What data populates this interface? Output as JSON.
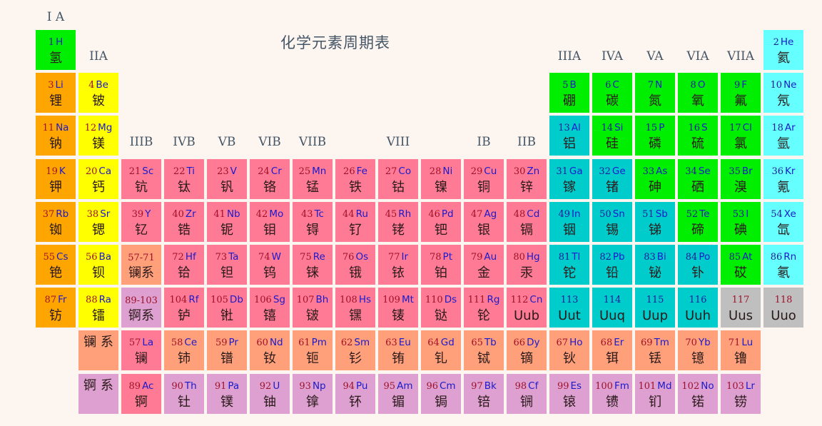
{
  "title": "化学元素周期表",
  "colors": {
    "alkali": "#ffa500",
    "alkaline": "#ffff00",
    "transition": "#ff7a94",
    "nonmetal": "#00ee00",
    "metal": "#00cccc",
    "noble": "#66ffff",
    "lanthanide": "#ffa07a",
    "actinide": "#dda0d0",
    "unknown": "#bfbfbf"
  },
  "group_labels": [
    {
      "text": "I A",
      "col": 1,
      "row": 0
    },
    {
      "text": "IIA",
      "col": 2,
      "row": 1
    },
    {
      "text": "IIIB",
      "col": 3,
      "row": 3
    },
    {
      "text": "IVB",
      "col": 4,
      "row": 3
    },
    {
      "text": "VB",
      "col": 5,
      "row": 3
    },
    {
      "text": "VIB",
      "col": 6,
      "row": 3
    },
    {
      "text": "VIIB",
      "col": 7,
      "row": 3
    },
    {
      "text": "VIII",
      "col": 9,
      "row": 3
    },
    {
      "text": "IB",
      "col": 11,
      "row": 3
    },
    {
      "text": "IIB",
      "col": 12,
      "row": 3
    },
    {
      "text": "IIIA",
      "col": 13,
      "row": 1
    },
    {
      "text": "IVA",
      "col": 14,
      "row": 1
    },
    {
      "text": "VA",
      "col": 15,
      "row": 1
    },
    {
      "text": "VIA",
      "col": 16,
      "row": 1
    },
    {
      "text": "VIIA",
      "col": 17,
      "row": 1
    }
  ],
  "elements": [
    {
      "n": 1,
      "s": "H",
      "name": "氢",
      "row": 1,
      "col": 1,
      "cat": "nonmetal"
    },
    {
      "n": 2,
      "s": "He",
      "name": "氦",
      "row": 1,
      "col": 18,
      "cat": "noble"
    },
    {
      "n": 3,
      "s": "Li",
      "name": "锂",
      "row": 2,
      "col": 1,
      "cat": "alkali"
    },
    {
      "n": 4,
      "s": "Be",
      "name": "铍",
      "row": 2,
      "col": 2,
      "cat": "alkaline"
    },
    {
      "n": 5,
      "s": "B",
      "name": "硼",
      "row": 2,
      "col": 13,
      "cat": "nonmetal"
    },
    {
      "n": 6,
      "s": "C",
      "name": "碳",
      "row": 2,
      "col": 14,
      "cat": "nonmetal"
    },
    {
      "n": 7,
      "s": "N",
      "name": "氮",
      "row": 2,
      "col": 15,
      "cat": "nonmetal"
    },
    {
      "n": 8,
      "s": "O",
      "name": "氧",
      "row": 2,
      "col": 16,
      "cat": "nonmetal"
    },
    {
      "n": 9,
      "s": "F",
      "name": "氟",
      "row": 2,
      "col": 17,
      "cat": "nonmetal"
    },
    {
      "n": 10,
      "s": "Ne",
      "name": "氖",
      "row": 2,
      "col": 18,
      "cat": "noble"
    },
    {
      "n": 11,
      "s": "Na",
      "name": "钠",
      "row": 3,
      "col": 1,
      "cat": "alkali"
    },
    {
      "n": 12,
      "s": "Mg",
      "name": "镁",
      "row": 3,
      "col": 2,
      "cat": "alkaline"
    },
    {
      "n": 13,
      "s": "Al",
      "name": "铝",
      "row": 3,
      "col": 13,
      "cat": "metal"
    },
    {
      "n": 14,
      "s": "Si",
      "name": "硅",
      "row": 3,
      "col": 14,
      "cat": "nonmetal"
    },
    {
      "n": 15,
      "s": "P",
      "name": "磷",
      "row": 3,
      "col": 15,
      "cat": "nonmetal"
    },
    {
      "n": 16,
      "s": "S",
      "name": "硫",
      "row": 3,
      "col": 16,
      "cat": "nonmetal"
    },
    {
      "n": 17,
      "s": "Cl",
      "name": "氯",
      "row": 3,
      "col": 17,
      "cat": "nonmetal"
    },
    {
      "n": 18,
      "s": "Ar",
      "name": "氩",
      "row": 3,
      "col": 18,
      "cat": "noble"
    },
    {
      "n": 19,
      "s": "K",
      "name": "钾",
      "row": 4,
      "col": 1,
      "cat": "alkali"
    },
    {
      "n": 20,
      "s": "Ca",
      "name": "钙",
      "row": 4,
      "col": 2,
      "cat": "alkaline"
    },
    {
      "n": 21,
      "s": "Sc",
      "name": "钪",
      "row": 4,
      "col": 3,
      "cat": "transition"
    },
    {
      "n": 22,
      "s": "Ti",
      "name": "钛",
      "row": 4,
      "col": 4,
      "cat": "transition"
    },
    {
      "n": 23,
      "s": "V",
      "name": "钒",
      "row": 4,
      "col": 5,
      "cat": "transition"
    },
    {
      "n": 24,
      "s": "Cr",
      "name": "铬",
      "row": 4,
      "col": 6,
      "cat": "transition"
    },
    {
      "n": 25,
      "s": "Mn",
      "name": "锰",
      "row": 4,
      "col": 7,
      "cat": "transition"
    },
    {
      "n": 26,
      "s": "Fe",
      "name": "铁",
      "row": 4,
      "col": 8,
      "cat": "transition"
    },
    {
      "n": 27,
      "s": "Co",
      "name": "钴",
      "row": 4,
      "col": 9,
      "cat": "transition"
    },
    {
      "n": 28,
      "s": "Ni",
      "name": "镍",
      "row": 4,
      "col": 10,
      "cat": "transition"
    },
    {
      "n": 29,
      "s": "Cu",
      "name": "铜",
      "row": 4,
      "col": 11,
      "cat": "transition"
    },
    {
      "n": 30,
      "s": "Zn",
      "name": "锌",
      "row": 4,
      "col": 12,
      "cat": "transition"
    },
    {
      "n": 31,
      "s": "Ga",
      "name": "镓",
      "row": 4,
      "col": 13,
      "cat": "metal"
    },
    {
      "n": 32,
      "s": "Ge",
      "name": "锗",
      "row": 4,
      "col": 14,
      "cat": "metal"
    },
    {
      "n": 33,
      "s": "As",
      "name": "砷",
      "row": 4,
      "col": 15,
      "cat": "nonmetal"
    },
    {
      "n": 34,
      "s": "Se",
      "name": "硒",
      "row": 4,
      "col": 16,
      "cat": "nonmetal"
    },
    {
      "n": 35,
      "s": "Br",
      "name": "溴",
      "row": 4,
      "col": 17,
      "cat": "nonmetal"
    },
    {
      "n": 36,
      "s": "Kr",
      "name": "氪",
      "row": 4,
      "col": 18,
      "cat": "noble"
    },
    {
      "n": 37,
      "s": "Rb",
      "name": "铷",
      "row": 5,
      "col": 1,
      "cat": "alkali"
    },
    {
      "n": 38,
      "s": "Sr",
      "name": "锶",
      "row": 5,
      "col": 2,
      "cat": "alkaline"
    },
    {
      "n": 39,
      "s": "Y",
      "name": "钇",
      "row": 5,
      "col": 3,
      "cat": "transition"
    },
    {
      "n": 40,
      "s": "Zr",
      "name": "锆",
      "row": 5,
      "col": 4,
      "cat": "transition"
    },
    {
      "n": 41,
      "s": "Nb",
      "name": "铌",
      "row": 5,
      "col": 5,
      "cat": "transition"
    },
    {
      "n": 42,
      "s": "Mo",
      "name": "钼",
      "row": 5,
      "col": 6,
      "cat": "transition"
    },
    {
      "n": 43,
      "s": "Tc",
      "name": "锝",
      "row": 5,
      "col": 7,
      "cat": "transition"
    },
    {
      "n": 44,
      "s": "Ru",
      "name": "钌",
      "row": 5,
      "col": 8,
      "cat": "transition"
    },
    {
      "n": 45,
      "s": "Rh",
      "name": "铑",
      "row": 5,
      "col": 9,
      "cat": "transition"
    },
    {
      "n": 46,
      "s": "Pd",
      "name": "钯",
      "row": 5,
      "col": 10,
      "cat": "transition"
    },
    {
      "n": 47,
      "s": "Ag",
      "name": "银",
      "row": 5,
      "col": 11,
      "cat": "transition"
    },
    {
      "n": 48,
      "s": "Cd",
      "name": "镉",
      "row": 5,
      "col": 12,
      "cat": "transition"
    },
    {
      "n": 49,
      "s": "In",
      "name": "铟",
      "row": 5,
      "col": 13,
      "cat": "metal"
    },
    {
      "n": 50,
      "s": "Sn",
      "name": "锡",
      "row": 5,
      "col": 14,
      "cat": "metal"
    },
    {
      "n": 51,
      "s": "Sb",
      "name": "锑",
      "row": 5,
      "col": 15,
      "cat": "metal"
    },
    {
      "n": 52,
      "s": "Te",
      "name": "碲",
      "row": 5,
      "col": 16,
      "cat": "nonmetal"
    },
    {
      "n": 53,
      "s": "I",
      "name": "碘",
      "row": 5,
      "col": 17,
      "cat": "nonmetal"
    },
    {
      "n": 54,
      "s": "Xe",
      "name": "氙",
      "row": 5,
      "col": 18,
      "cat": "noble"
    },
    {
      "n": 55,
      "s": "Cs",
      "name": "铯",
      "row": 6,
      "col": 1,
      "cat": "alkali"
    },
    {
      "n": 56,
      "s": "Ba",
      "name": "钡",
      "row": 6,
      "col": 2,
      "cat": "alkaline"
    },
    {
      "n": "57-71",
      "s": "",
      "name": "镧系",
      "row": 6,
      "col": 3,
      "cat": "lanthanide",
      "kind": "range"
    },
    {
      "n": 72,
      "s": "Hf",
      "name": "铪",
      "row": 6,
      "col": 4,
      "cat": "transition"
    },
    {
      "n": 73,
      "s": "Ta",
      "name": "钽",
      "row": 6,
      "col": 5,
      "cat": "transition"
    },
    {
      "n": 74,
      "s": "W",
      "name": "钨",
      "row": 6,
      "col": 6,
      "cat": "transition"
    },
    {
      "n": 75,
      "s": "Re",
      "name": "铼",
      "row": 6,
      "col": 7,
      "cat": "transition"
    },
    {
      "n": 76,
      "s": "Os",
      "name": "锇",
      "row": 6,
      "col": 8,
      "cat": "transition"
    },
    {
      "n": 77,
      "s": "Ir",
      "name": "铱",
      "row": 6,
      "col": 9,
      "cat": "transition"
    },
    {
      "n": 78,
      "s": "Pt",
      "name": "铂",
      "row": 6,
      "col": 10,
      "cat": "transition"
    },
    {
      "n": 79,
      "s": "Au",
      "name": "金",
      "row": 6,
      "col": 11,
      "cat": "transition"
    },
    {
      "n": 80,
      "s": "Hg",
      "name": "汞",
      "row": 6,
      "col": 12,
      "cat": "transition"
    },
    {
      "n": 81,
      "s": "Tl",
      "name": "铊",
      "row": 6,
      "col": 13,
      "cat": "metal"
    },
    {
      "n": 82,
      "s": "Pb",
      "name": "铅",
      "row": 6,
      "col": 14,
      "cat": "metal"
    },
    {
      "n": 83,
      "s": "Bi",
      "name": "铋",
      "row": 6,
      "col": 15,
      "cat": "metal"
    },
    {
      "n": 84,
      "s": "Po",
      "name": "钋",
      "row": 6,
      "col": 16,
      "cat": "metal"
    },
    {
      "n": 85,
      "s": "At",
      "name": "砹",
      "row": 6,
      "col": 17,
      "cat": "nonmetal"
    },
    {
      "n": 86,
      "s": "Rn",
      "name": "氡",
      "row": 6,
      "col": 18,
      "cat": "noble"
    },
    {
      "n": 87,
      "s": "Fr",
      "name": "钫",
      "row": 7,
      "col": 1,
      "cat": "alkali"
    },
    {
      "n": 88,
      "s": "Ra",
      "name": "镭",
      "row": 7,
      "col": 2,
      "cat": "alkaline"
    },
    {
      "n": "89-103",
      "s": "",
      "name": "锕系",
      "row": 7,
      "col": 3,
      "cat": "actinide",
      "kind": "range"
    },
    {
      "n": 104,
      "s": "Rf",
      "name": "𬬻",
      "row": 7,
      "col": 4,
      "cat": "transition"
    },
    {
      "n": 105,
      "s": "Db",
      "name": "𬭊",
      "row": 7,
      "col": 5,
      "cat": "transition"
    },
    {
      "n": 106,
      "s": "Sg",
      "name": "𬭳",
      "row": 7,
      "col": 6,
      "cat": "transition"
    },
    {
      "n": 107,
      "s": "Bh",
      "name": "𬭛",
      "row": 7,
      "col": 7,
      "cat": "transition"
    },
    {
      "n": 108,
      "s": "Hs",
      "name": "𬭶",
      "row": 7,
      "col": 8,
      "cat": "transition"
    },
    {
      "n": 109,
      "s": "Mt",
      "name": "鿏",
      "row": 7,
      "col": 9,
      "cat": "transition"
    },
    {
      "n": 110,
      "s": "Ds",
      "name": "𫟼",
      "row": 7,
      "col": 10,
      "cat": "transition"
    },
    {
      "n": 111,
      "s": "Rg",
      "name": "𬬭",
      "row": 7,
      "col": 11,
      "cat": "transition"
    },
    {
      "n": 112,
      "s": "Cn",
      "name": "Uub",
      "row": 7,
      "col": 12,
      "cat": "transition"
    },
    {
      "n": 113,
      "s": "",
      "name": "Uut",
      "row": 7,
      "col": 13,
      "cat": "metal"
    },
    {
      "n": 114,
      "s": "",
      "name": "Uuq",
      "row": 7,
      "col": 14,
      "cat": "metal"
    },
    {
      "n": 115,
      "s": "",
      "name": "Uup",
      "row": 7,
      "col": 15,
      "cat": "metal"
    },
    {
      "n": 116,
      "s": "",
      "name": "Uuh",
      "row": 7,
      "col": 16,
      "cat": "metal"
    },
    {
      "n": 117,
      "s": "",
      "name": "Uus",
      "row": 7,
      "col": 17,
      "cat": "unknown"
    },
    {
      "n": 118,
      "s": "",
      "name": "Uuo",
      "row": 7,
      "col": 18,
      "cat": "unknown"
    },
    {
      "n": "",
      "s": "",
      "name": "镧 系",
      "row": 8,
      "col": 2,
      "cat": "lanthanide",
      "kind": "series"
    },
    {
      "n": 57,
      "s": "La",
      "name": "镧",
      "row": 8,
      "col": 3,
      "cat": "transition"
    },
    {
      "n": 58,
      "s": "Ce",
      "name": "铈",
      "row": 8,
      "col": 4,
      "cat": "lanthanide"
    },
    {
      "n": 59,
      "s": "Pr",
      "name": "镨",
      "row": 8,
      "col": 5,
      "cat": "lanthanide"
    },
    {
      "n": 60,
      "s": "Nd",
      "name": "钕",
      "row": 8,
      "col": 6,
      "cat": "lanthanide"
    },
    {
      "n": 61,
      "s": "Pm",
      "name": "钷",
      "row": 8,
      "col": 7,
      "cat": "lanthanide"
    },
    {
      "n": 62,
      "s": "Sm",
      "name": "钐",
      "row": 8,
      "col": 8,
      "cat": "lanthanide"
    },
    {
      "n": 63,
      "s": "Eu",
      "name": "铕",
      "row": 8,
      "col": 9,
      "cat": "lanthanide"
    },
    {
      "n": 64,
      "s": "Gd",
      "name": "钆",
      "row": 8,
      "col": 10,
      "cat": "lanthanide"
    },
    {
      "n": 65,
      "s": "Tb",
      "name": "铽",
      "row": 8,
      "col": 11,
      "cat": "lanthanide"
    },
    {
      "n": 66,
      "s": "Dy",
      "name": "镝",
      "row": 8,
      "col": 12,
      "cat": "lanthanide"
    },
    {
      "n": 67,
      "s": "Ho",
      "name": "钬",
      "row": 8,
      "col": 13,
      "cat": "lanthanide"
    },
    {
      "n": 68,
      "s": "Er",
      "name": "铒",
      "row": 8,
      "col": 14,
      "cat": "lanthanide"
    },
    {
      "n": 69,
      "s": "Tm",
      "name": "铥",
      "row": 8,
      "col": 15,
      "cat": "lanthanide"
    },
    {
      "n": 70,
      "s": "Yb",
      "name": "镱",
      "row": 8,
      "col": 16,
      "cat": "lanthanide"
    },
    {
      "n": 71,
      "s": "Lu",
      "name": "镥",
      "row": 8,
      "col": 17,
      "cat": "lanthanide"
    },
    {
      "n": "",
      "s": "",
      "name": "锕 系",
      "row": 9,
      "col": 2,
      "cat": "actinide",
      "kind": "series"
    },
    {
      "n": 89,
      "s": "Ac",
      "name": "锕",
      "row": 9,
      "col": 3,
      "cat": "transition"
    },
    {
      "n": 90,
      "s": "Th",
      "name": "钍",
      "row": 9,
      "col": 4,
      "cat": "actinide"
    },
    {
      "n": 91,
      "s": "Pa",
      "name": "镤",
      "row": 9,
      "col": 5,
      "cat": "actinide"
    },
    {
      "n": 92,
      "s": "U",
      "name": "铀",
      "row": 9,
      "col": 6,
      "cat": "actinide"
    },
    {
      "n": 93,
      "s": "Np",
      "name": "镎",
      "row": 9,
      "col": 7,
      "cat": "actinide"
    },
    {
      "n": 94,
      "s": "Pu",
      "name": "钚",
      "row": 9,
      "col": 8,
      "cat": "actinide"
    },
    {
      "n": 95,
      "s": "Am",
      "name": "镅",
      "row": 9,
      "col": 9,
      "cat": "actinide"
    },
    {
      "n": 96,
      "s": "Cm",
      "name": "锔",
      "row": 9,
      "col": 10,
      "cat": "actinide"
    },
    {
      "n": 97,
      "s": "Bk",
      "name": "锫",
      "row": 9,
      "col": 11,
      "cat": "actinide"
    },
    {
      "n": 98,
      "s": "Cf",
      "name": "锎",
      "row": 9,
      "col": 12,
      "cat": "actinide"
    },
    {
      "n": 99,
      "s": "Es",
      "name": "锿",
      "row": 9,
      "col": 13,
      "cat": "actinide"
    },
    {
      "n": 100,
      "s": "Fm",
      "name": "镄",
      "row": 9,
      "col": 14,
      "cat": "actinide"
    },
    {
      "n": 101,
      "s": "Md",
      "name": "钔",
      "row": 9,
      "col": 15,
      "cat": "actinide"
    },
    {
      "n": 102,
      "s": "No",
      "name": "锘",
      "row": 9,
      "col": 16,
      "cat": "actinide"
    },
    {
      "n": 103,
      "s": "Lr",
      "name": "铹",
      "row": 9,
      "col": 17,
      "cat": "actinide"
    }
  ]
}
